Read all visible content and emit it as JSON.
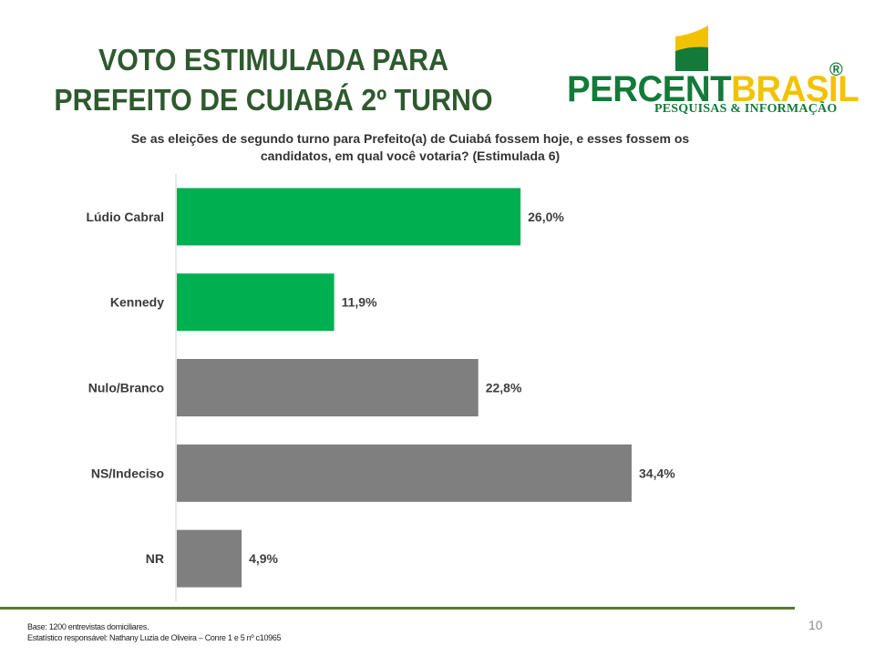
{
  "header": {
    "title_line1": "VOTO ESTIMULADA PARA",
    "title_line2": "PREFEITO DE  CUIABÁ 2º TURNO"
  },
  "logo": {
    "name_part1": "PERCENT",
    "name_part2": "BRASIL",
    "registered": "®",
    "subtitle": "PESQUISAS & INFORMAÇÃO",
    "colors": {
      "green": "#137a3a",
      "yellow": "#f2c200"
    }
  },
  "question": "Se as eleições de segundo turno para Prefeito(a) de Cuiabá fossem hoje, e esses fossem os candidatos, em qual você votaria? (Estimulada 6)",
  "chart_data": {
    "type": "bar",
    "orientation": "horizontal",
    "categories": [
      "Lúdio Cabral",
      "Kennedy",
      "Nulo/Branco",
      "NS/Indeciso",
      "NR"
    ],
    "values": [
      26.0,
      11.9,
      22.8,
      34.4,
      4.9
    ],
    "data_labels": [
      "26,0%",
      "11,9%",
      "22,8%",
      "34,4%",
      "4,9%"
    ],
    "bar_colors": [
      "#00b050",
      "#00b050",
      "#7f7f7f",
      "#7f7f7f",
      "#7f7f7f"
    ],
    "title": "",
    "xlabel": "",
    "ylabel": "",
    "xlim": [
      0,
      40
    ],
    "grid": false,
    "legend": "none"
  },
  "footer": {
    "base": "Base: 1200 entrevistas domiciliares.",
    "statistician": "Estatístico responsável: Nathany Luzia de Oliveira – Conre 1 e 5 nº c10965",
    "page_number": "10"
  }
}
